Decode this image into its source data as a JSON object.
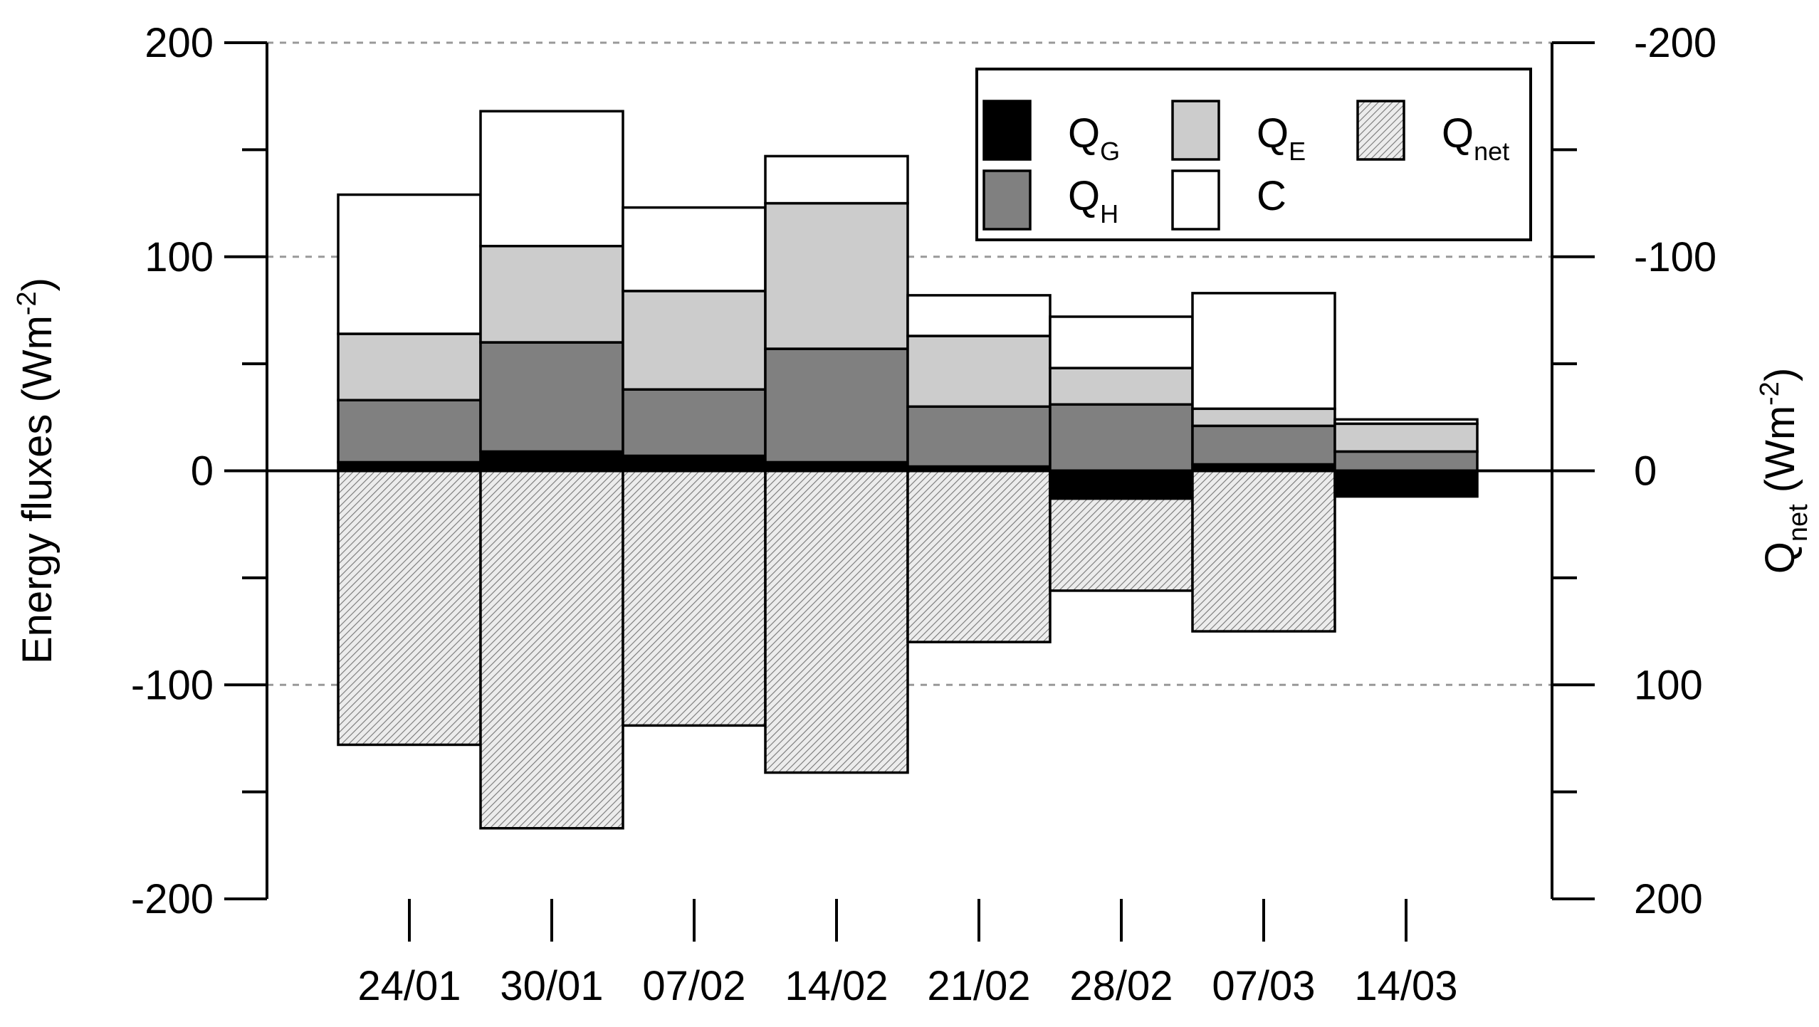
{
  "chart_data": {
    "type": "bar",
    "stacked": true,
    "categories": [
      "24/01",
      "30/01",
      "07/02",
      "14/02",
      "21/02",
      "28/02",
      "07/03",
      "14/03"
    ],
    "series": [
      {
        "name": "Q_G",
        "label_main": "Q",
        "label_sub": "G",
        "color": "#000000",
        "pattern": "solid",
        "values": [
          4,
          9,
          7,
          4,
          2,
          -13,
          3,
          -12
        ]
      },
      {
        "name": "Q_H",
        "label_main": "Q",
        "label_sub": "H",
        "color": "#808080",
        "pattern": "solid",
        "values": [
          29,
          51,
          31,
          53,
          28,
          31,
          18,
          9
        ]
      },
      {
        "name": "Q_E",
        "label_main": "Q",
        "label_sub": "E",
        "color": "#cccccc",
        "pattern": "solid",
        "values": [
          31,
          45,
          46,
          68,
          33,
          17,
          8,
          13
        ]
      },
      {
        "name": "C",
        "label_main": "C",
        "label_sub": "",
        "color": "#ffffff",
        "pattern": "solid",
        "values": [
          65,
          63,
          39,
          22,
          19,
          24,
          54,
          2
        ]
      },
      {
        "name": "Q_net",
        "label_main": "Q",
        "label_sub": "net",
        "color": "#e6e6e6",
        "pattern": "hatch",
        "axis": "right",
        "values": [
          128,
          167,
          119,
          141,
          80,
          56,
          75,
          0
        ]
      }
    ],
    "ylabel_main": "Energy fluxes (Wm",
    "ylabel_sup": "-2",
    "ylabel_end": ")",
    "y2label_q": "Q",
    "y2label_sub": "net",
    "y2label_main": " (Wm",
    "y2label_sup": "-2",
    "y2label_end": ")",
    "ylim": [
      -200,
      200
    ],
    "y2lim": [
      200,
      -200
    ],
    "y2_inverted": true,
    "yticks": [
      200,
      100,
      0,
      -100,
      -200
    ],
    "ytick_labels": [
      "200",
      "100",
      "0",
      "-100",
      "-200"
    ],
    "y2tick_labels": [
      "-200",
      "-100",
      "0",
      "100",
      "200"
    ],
    "grid": "dashed at ±100 and 200",
    "legend_position": "top-right"
  }
}
